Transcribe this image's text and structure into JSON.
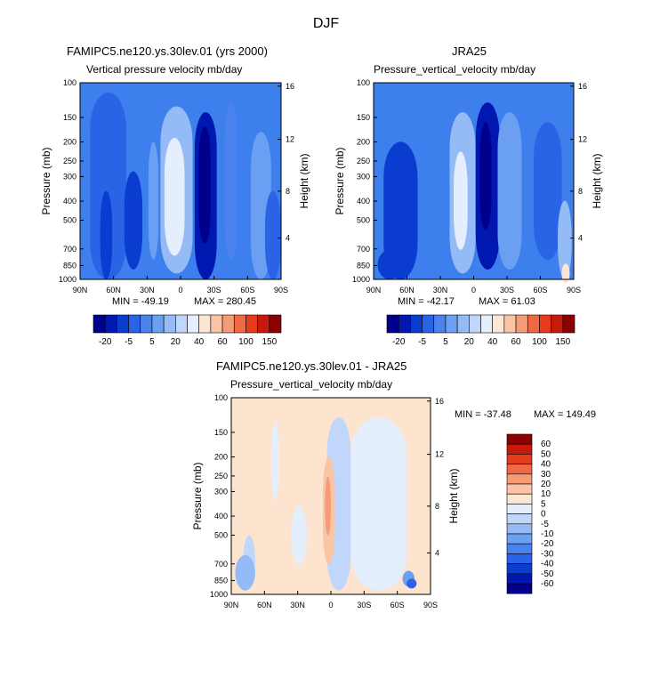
{
  "title": "DJF",
  "colors": {
    "panel_bg": "#3e7fee",
    "diff_bg": "#fde4cf",
    "levels_blue_scale": [
      "#00008c",
      "#0018b0",
      "#0a3cd0",
      "#2a64e6",
      "#4a82ee",
      "#6b9ff2",
      "#95bbf6",
      "#c0d6fa",
      "#e4eefd",
      "#fde6d4",
      "#fbc4a4",
      "#f59c76",
      "#ef6a44",
      "#e43c1c",
      "#c81a0a",
      "#8b0000"
    ]
  },
  "chart_data": [
    {
      "type": "heatmap",
      "title": "FAMIPC5.ne120.ys.30lev.01 (yrs 2000)",
      "subtitle": "Vertical pressure velocity mb/day",
      "xlabel": "",
      "ylabel": "Pressure (mb)",
      "y2label": "Height (km)",
      "x_ticks": [
        "90N",
        "60N",
        "30N",
        "0",
        "30S",
        "60S",
        "90S"
      ],
      "xlim": [
        90,
        -90
      ],
      "y_ticks": [
        100,
        150,
        200,
        250,
        300,
        400,
        500,
        700,
        850,
        1000
      ],
      "ylim": [
        1000,
        100
      ],
      "y_scale": "log",
      "y2_ticks": [
        4,
        8,
        12,
        16
      ],
      "min": -49.19,
      "max": 280.45,
      "min_text": "MIN = -49.19",
      "max_text": "MAX = 280.45",
      "colorbar_labels": [
        "-20",
        "-5",
        "5",
        "20",
        "40",
        "60",
        "100",
        "150"
      ],
      "colorbar_orientation": "horizontal"
    },
    {
      "type": "heatmap",
      "title": "JRA25",
      "subtitle": "Pressure_vertical_velocity mb/day",
      "xlabel": "",
      "ylabel": "Pressure (mb)",
      "y2label": "Height (km)",
      "x_ticks": [
        "90N",
        "60N",
        "30N",
        "0",
        "30S",
        "60S",
        "90S"
      ],
      "xlim": [
        90,
        -90
      ],
      "y_ticks": [
        100,
        150,
        200,
        250,
        300,
        400,
        500,
        700,
        850,
        1000
      ],
      "ylim": [
        1000,
        100
      ],
      "y_scale": "log",
      "y2_ticks": [
        4,
        8,
        12,
        16
      ],
      "min": -42.17,
      "max": 61.03,
      "min_text": "MIN = -42.17",
      "max_text": "MAX =  61.03",
      "colorbar_labels": [
        "-20",
        "-5",
        "5",
        "20",
        "40",
        "60",
        "100",
        "150"
      ],
      "colorbar_orientation": "horizontal"
    },
    {
      "type": "heatmap",
      "title": "FAMIPC5.ne120.ys.30lev.01 - JRA25",
      "subtitle": "Pressure_vertical_velocity mb/day",
      "xlabel": "",
      "ylabel": "Pressure (mb)",
      "y2label": "Height (km)",
      "x_ticks": [
        "90N",
        "60N",
        "30N",
        "0",
        "30S",
        "60S",
        "90S"
      ],
      "xlim": [
        90,
        -90
      ],
      "y_ticks": [
        100,
        150,
        200,
        250,
        300,
        400,
        500,
        700,
        850,
        1000
      ],
      "ylim": [
        1000,
        100
      ],
      "y_scale": "log",
      "y2_ticks": [
        4,
        8,
        12,
        16
      ],
      "min": -37.48,
      "max": 149.49,
      "min_text": "MIN = -37.48",
      "max_text": "MAX = 149.49",
      "colorbar_labels": [
        "60",
        "50",
        "40",
        "30",
        "20",
        "10",
        "5",
        "0",
        "-5",
        "-10",
        "-20",
        "-30",
        "-40",
        "-50",
        "-60"
      ],
      "colorbar_orientation": "vertical"
    }
  ]
}
